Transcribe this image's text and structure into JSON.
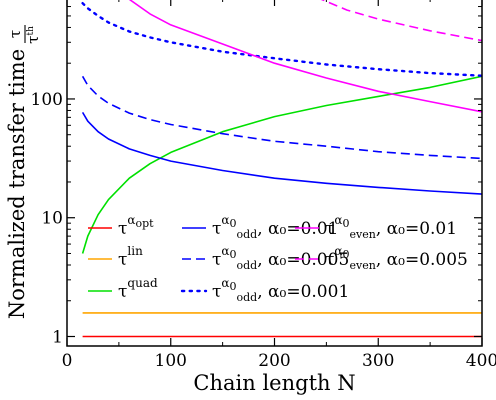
{
  "chart_data": {
    "type": "line",
    "xlabel": "Chain length N",
    "ylabel": "Normalized transfer time",
    "ylabel_frac": {
      "num": "τ",
      "den": "τ",
      "den_sup": "th"
    },
    "xlim": [
      0,
      400
    ],
    "ylim_log10": [
      -0.08,
      2.85
    ],
    "yscale": "log",
    "grid": false,
    "legend_placement": "lower-left",
    "x_ticks": [
      0,
      100,
      200,
      300,
      400
    ],
    "x_tick_labels": [
      "0",
      "100",
      "200",
      "300",
      "400"
    ],
    "y_ticks": [
      1,
      10,
      100
    ],
    "y_tick_labels": [
      "1",
      "10",
      "100"
    ],
    "series": [
      {
        "id": "opt",
        "label": "τ",
        "sup": "α",
        "supsub": "opt",
        "sub": "",
        "param": "",
        "color": "#ff0000",
        "dash": "solid",
        "x": [
          15,
          400
        ],
        "y": [
          1.0,
          1.0
        ]
      },
      {
        "id": "lin",
        "label": "τ",
        "sup": "lin",
        "supsub": "",
        "sub": "",
        "param": "",
        "color": "#ffa500",
        "dash": "solid",
        "x": [
          15,
          400
        ],
        "y": [
          1.58,
          1.58
        ]
      },
      {
        "id": "quad",
        "label": "τ",
        "sup": "quad",
        "supsub": "",
        "sub": "",
        "param": "",
        "color": "#00e000",
        "dash": "solid",
        "x": [
          15,
          20,
          30,
          40,
          60,
          80,
          100,
          150,
          200,
          250,
          300,
          350,
          400
        ],
        "y": [
          5.0,
          7.0,
          10.6,
          14.2,
          21.5,
          28.5,
          35.5,
          53,
          71,
          88,
          105,
          125,
          155
        ]
      },
      {
        "id": "odd001",
        "label": "τ",
        "sup": "α",
        "supsub": "0",
        "sub": "odd",
        "param": "α₀=0.01",
        "color": "#0000ff",
        "dash": "solid",
        "x": [
          15,
          20,
          30,
          40,
          60,
          80,
          100,
          150,
          200,
          250,
          300,
          350,
          400
        ],
        "y": [
          77,
          65,
          53,
          46,
          38,
          33.5,
          30,
          25,
          21.5,
          19.5,
          18,
          16.8,
          15.8
        ]
      },
      {
        "id": "odd0005",
        "label": "τ",
        "sup": "α",
        "supsub": "0",
        "sub": "odd",
        "param": "α₀=0.005",
        "color": "#0000ff",
        "dash": "dashed",
        "x": [
          15,
          20,
          30,
          40,
          60,
          80,
          100,
          150,
          200,
          250,
          300,
          350,
          400
        ],
        "y": [
          155,
          130,
          106,
          92,
          76,
          67,
          61,
          51,
          44,
          40,
          36,
          33.5,
          31.5
        ]
      },
      {
        "id": "odd0001",
        "label": "τ",
        "sup": "α",
        "supsub": "0",
        "sub": "odd",
        "param": "α₀=0.001",
        "color": "#0000ff",
        "dash": "dotted",
        "x": [
          15,
          20,
          30,
          40,
          60,
          80,
          100,
          150,
          200,
          250,
          300,
          350,
          400
        ],
        "y": [
          640,
          580,
          500,
          440,
          370,
          330,
          300,
          250,
          220,
          195,
          178,
          165,
          157
        ]
      },
      {
        "id": "even001",
        "label": "τ",
        "sup": "α",
        "supsub": "0",
        "sub": "even",
        "param": "α₀=0.01",
        "color": "#ff00ff",
        "dash": "solid",
        "x": [
          60,
          80,
          100,
          150,
          200,
          250,
          300,
          350,
          400
        ],
        "y": [
          690,
          520,
          420,
          290,
          200,
          150,
          116,
          95,
          78
        ]
      },
      {
        "id": "even0005",
        "label": "τ",
        "sup": "α",
        "supsub": "0",
        "sub": "even",
        "param": "α₀=0.005",
        "color": "#ff00ff",
        "dash": "dashed",
        "x": [
          240,
          270,
          300,
          350,
          400
        ],
        "y": [
          720,
          560,
          470,
          375,
          310
        ]
      }
    ],
    "legend_columns": [
      [
        "opt",
        "lin",
        "quad"
      ],
      [
        "odd001",
        "odd0005",
        "odd0001"
      ],
      [
        "even001",
        "even0005"
      ]
    ]
  }
}
